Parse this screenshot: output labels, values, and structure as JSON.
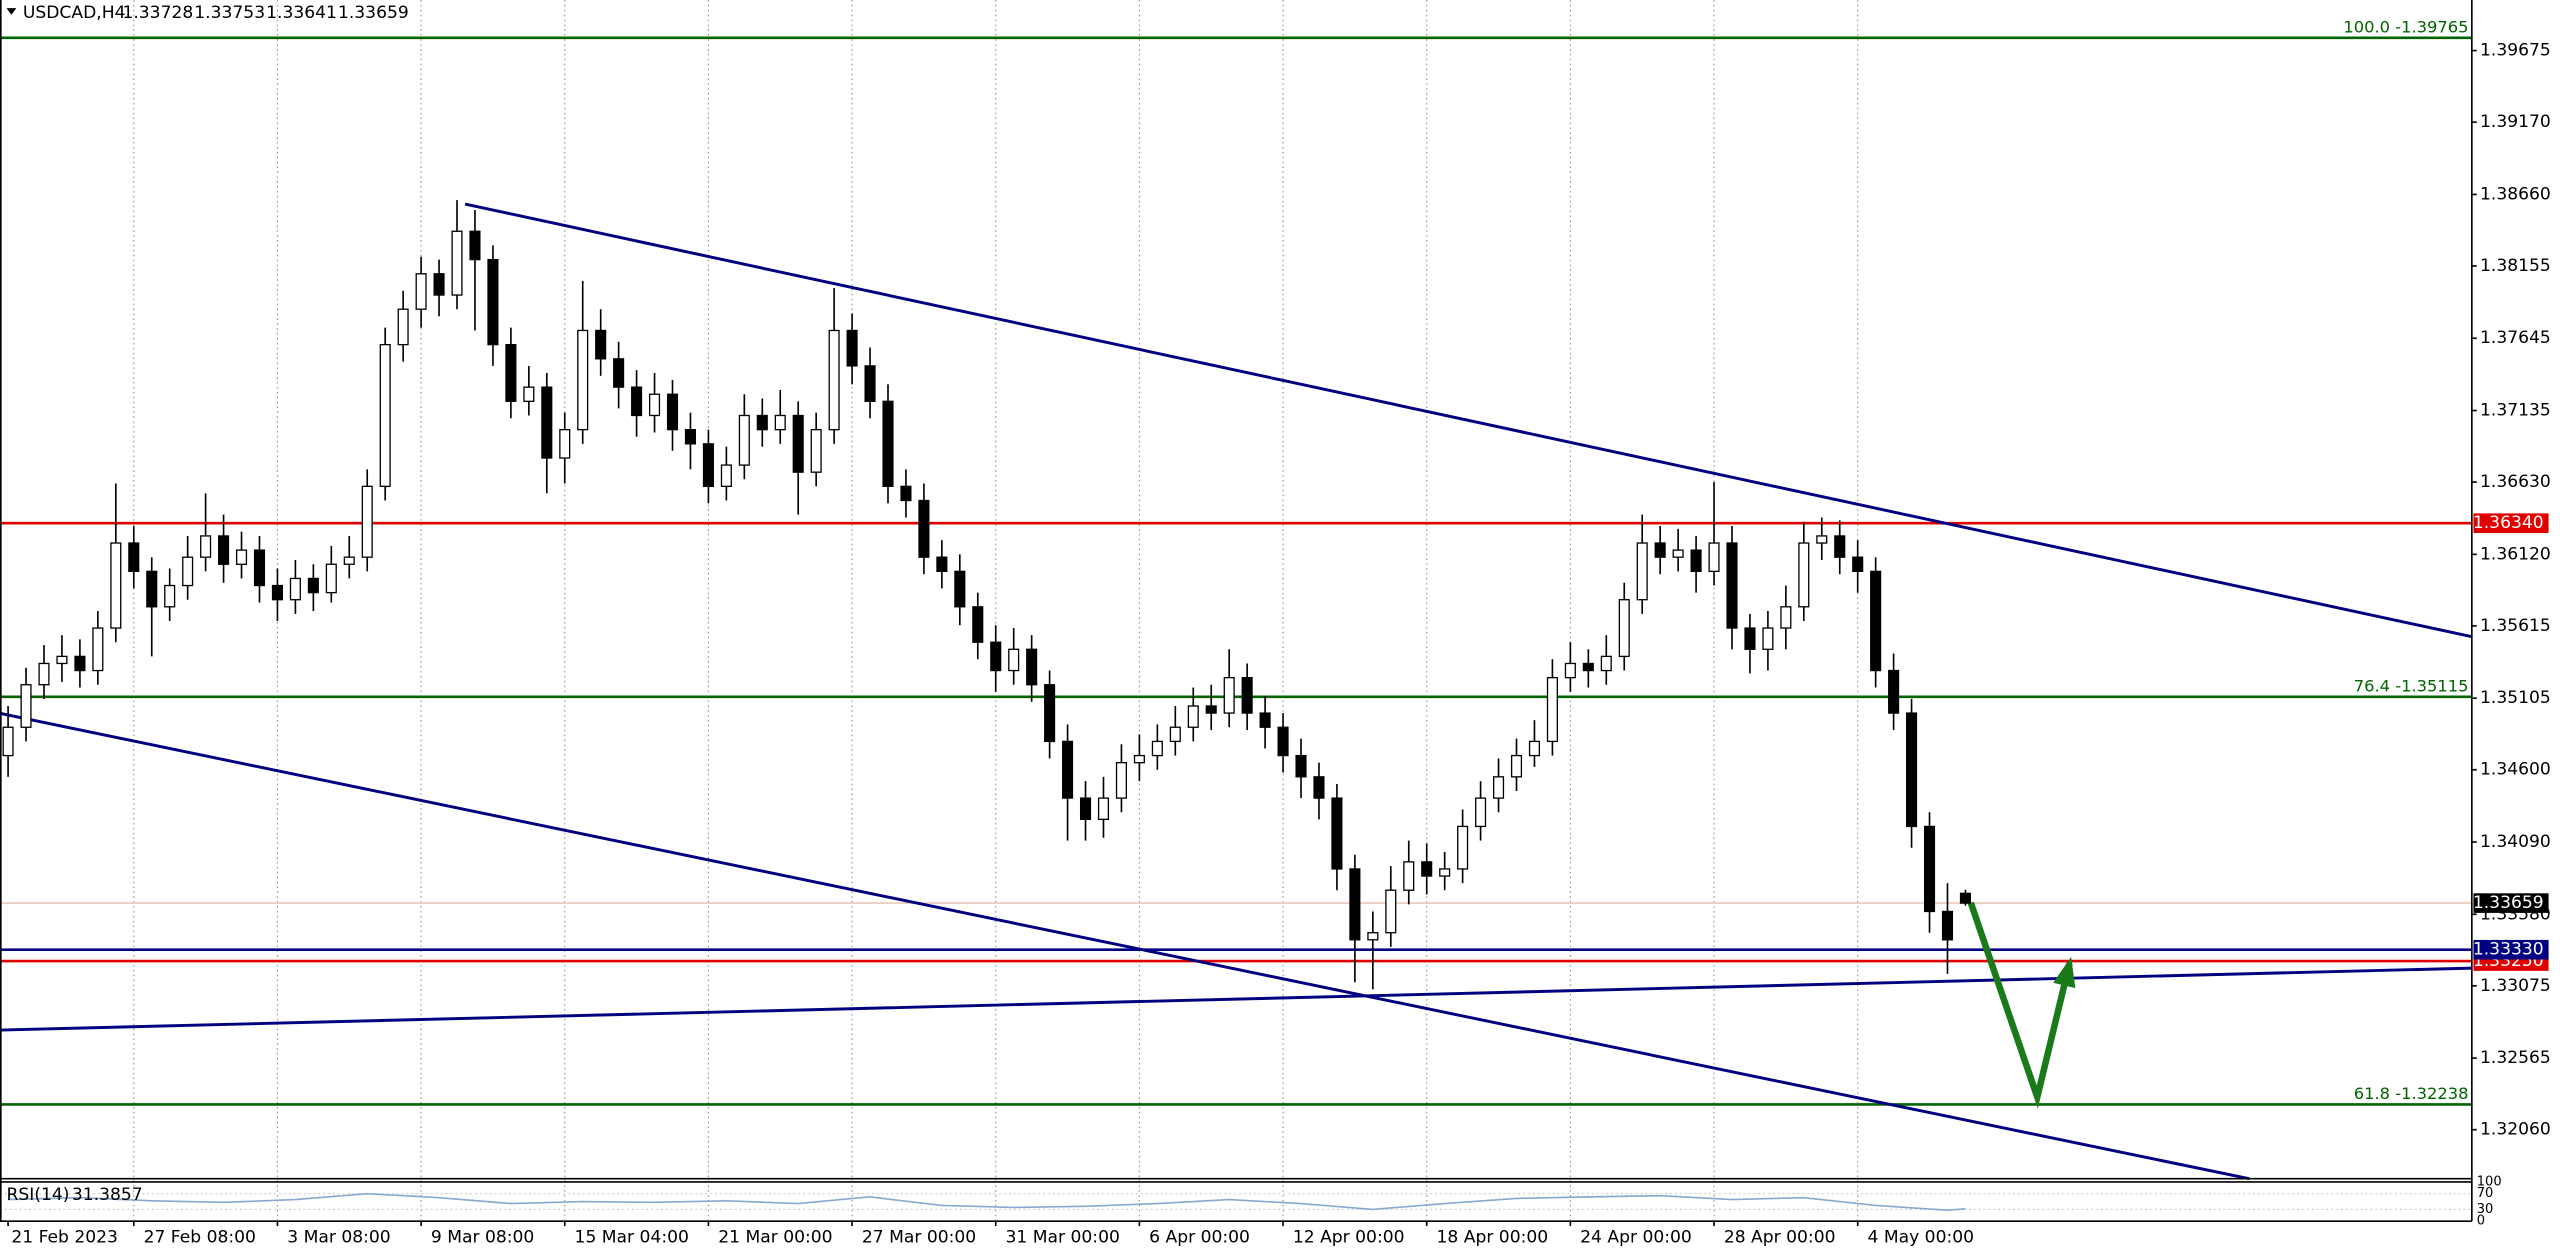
{
  "chart_data": {
    "type": "candlestick",
    "title": "USDCAD,H4",
    "open": [
      1.347,
      1.349,
      1.352,
      1.3535,
      1.354,
      1.353,
      1.356,
      1.362,
      1.36,
      1.3575,
      1.359,
      1.361,
      1.3625,
      1.3605,
      1.3615,
      1.359,
      1.358,
      1.3595,
      1.3585,
      1.3605,
      1.361,
      1.366,
      1.376,
      1.3785,
      1.381,
      1.3795,
      1.384,
      1.382,
      1.376,
      1.372,
      1.373,
      1.368,
      1.37,
      1.377,
      1.375,
      1.373,
      1.371,
      1.3725,
      1.37,
      1.369,
      1.366,
      1.3675,
      1.371,
      1.37,
      1.371,
      1.367,
      1.37,
      1.377,
      1.3745,
      1.372,
      1.366,
      1.365,
      1.361,
      1.36,
      1.3575,
      1.355,
      1.353,
      1.3545,
      1.352,
      1.348,
      1.344,
      1.3425,
      1.344,
      1.3465,
      1.347,
      1.348,
      1.349,
      1.3505,
      1.35,
      1.3525,
      1.35,
      1.349,
      1.347,
      1.3455,
      1.344,
      1.339,
      1.334,
      1.3345,
      1.3375,
      1.3395,
      1.3385,
      1.339,
      1.342,
      1.344,
      1.3455,
      1.347,
      1.348,
      1.3525,
      1.3535,
      1.353,
      1.354,
      1.358,
      1.362,
      1.361,
      1.3615,
      1.36,
      1.362,
      1.356,
      1.3545,
      1.356,
      1.3575,
      1.362,
      1.3625,
      1.361,
      1.36,
      1.353,
      1.35,
      1.342,
      1.336,
      1.33728
    ],
    "high": [
      1.3505,
      1.3532,
      1.3548,
      1.3555,
      1.3552,
      1.3572,
      1.3662,
      1.3632,
      1.361,
      1.3602,
      1.3625,
      1.3655,
      1.364,
      1.3628,
      1.3625,
      1.3602,
      1.3608,
      1.3605,
      1.3618,
      1.3625,
      1.3672,
      1.3772,
      1.3798,
      1.3822,
      1.382,
      1.3862,
      1.3855,
      1.383,
      1.3772,
      1.3745,
      1.374,
      1.3712,
      1.3805,
      1.3785,
      1.3762,
      1.3742,
      1.374,
      1.3735,
      1.3712,
      1.37,
      1.3688,
      1.3725,
      1.3722,
      1.3728,
      1.372,
      1.3712,
      1.38,
      1.3782,
      1.3758,
      1.3732,
      1.3672,
      1.3662,
      1.3622,
      1.3612,
      1.3585,
      1.3562,
      1.356,
      1.3555,
      1.353,
      1.3492,
      1.3452,
      1.3455,
      1.3478,
      1.3485,
      1.3492,
      1.3505,
      1.3518,
      1.352,
      1.3545,
      1.3535,
      1.3512,
      1.35,
      1.3482,
      1.3465,
      1.345,
      1.34,
      1.336,
      1.3392,
      1.341,
      1.3408,
      1.3402,
      1.3432,
      1.3452,
      1.3468,
      1.3482,
      1.3495,
      1.3538,
      1.355,
      1.3545,
      1.3555,
      1.3592,
      1.364,
      1.3632,
      1.363,
      1.3625,
      1.3663,
      1.3632,
      1.357,
      1.3572,
      1.359,
      1.3635,
      1.3638,
      1.3636,
      1.3622,
      1.361,
      1.3542,
      1.351,
      1.343,
      1.338,
      1.33753
    ],
    "low": [
      1.3455,
      1.348,
      1.351,
      1.3522,
      1.3518,
      1.352,
      1.355,
      1.3588,
      1.354,
      1.3565,
      1.358,
      1.36,
      1.3592,
      1.3595,
      1.3578,
      1.3565,
      1.357,
      1.3572,
      1.3578,
      1.3595,
      1.36,
      1.365,
      1.3748,
      1.3772,
      1.378,
      1.3785,
      1.377,
      1.3745,
      1.3708,
      1.371,
      1.3655,
      1.3662,
      1.369,
      1.3738,
      1.3715,
      1.3695,
      1.3698,
      1.3685,
      1.3672,
      1.3648,
      1.365,
      1.3665,
      1.3688,
      1.369,
      1.364,
      1.366,
      1.369,
      1.3732,
      1.3708,
      1.3648,
      1.3638,
      1.3598,
      1.3588,
      1.3562,
      1.3538,
      1.3515,
      1.352,
      1.3508,
      1.3468,
      1.341,
      1.341,
      1.3412,
      1.343,
      1.3452,
      1.346,
      1.347,
      1.348,
      1.3488,
      1.349,
      1.3488,
      1.3475,
      1.3458,
      1.344,
      1.3425,
      1.3375,
      1.331,
      1.3305,
      1.3335,
      1.3365,
      1.3372,
      1.3375,
      1.338,
      1.341,
      1.343,
      1.3445,
      1.3462,
      1.347,
      1.3515,
      1.3518,
      1.352,
      1.353,
      1.357,
      1.3598,
      1.36,
      1.3585,
      1.359,
      1.3545,
      1.3528,
      1.353,
      1.3545,
      1.3565,
      1.3608,
      1.3598,
      1.3585,
      1.3518,
      1.3488,
      1.3405,
      1.3345,
      1.3316,
      1.33641
    ],
    "close": [
      1.349,
      1.352,
      1.3535,
      1.354,
      1.353,
      1.356,
      1.362,
      1.36,
      1.3575,
      1.359,
      1.361,
      1.3625,
      1.3605,
      1.3615,
      1.359,
      1.358,
      1.3595,
      1.3585,
      1.3605,
      1.361,
      1.366,
      1.376,
      1.3785,
      1.381,
      1.3795,
      1.384,
      1.382,
      1.376,
      1.372,
      1.373,
      1.368,
      1.37,
      1.377,
      1.375,
      1.373,
      1.371,
      1.3725,
      1.37,
      1.369,
      1.366,
      1.3675,
      1.371,
      1.37,
      1.371,
      1.367,
      1.37,
      1.377,
      1.3745,
      1.372,
      1.366,
      1.365,
      1.361,
      1.36,
      1.3575,
      1.355,
      1.353,
      1.3545,
      1.352,
      1.348,
      1.344,
      1.3425,
      1.344,
      1.3465,
      1.347,
      1.348,
      1.349,
      1.3505,
      1.35,
      1.3525,
      1.35,
      1.349,
      1.347,
      1.3455,
      1.344,
      1.339,
      1.334,
      1.3345,
      1.3375,
      1.3395,
      1.3385,
      1.339,
      1.342,
      1.344,
      1.3455,
      1.347,
      1.348,
      1.3525,
      1.3535,
      1.353,
      1.354,
      1.358,
      1.362,
      1.361,
      1.3615,
      1.36,
      1.362,
      1.356,
      1.3545,
      1.356,
      1.3575,
      1.362,
      1.3625,
      1.361,
      1.36,
      1.353,
      1.35,
      1.342,
      1.336,
      1.334,
      1.33659
    ],
    "xlim": [
      -0.45,
      137.2
    ],
    "ylim": [
      1.31714,
      1.40032
    ],
    "yticks": [
      1.39675,
      {
        "value": 1.3917,
        "label": "1.39170"
      },
      {
        "value": 1.3866,
        "label": "1.38660"
      },
      1.38155,
      1.37645,
      1.37135,
      {
        "value": 1.3663,
        "label": "1.36630"
      },
      {
        "value": 1.3612,
        "label": "1.36120"
      },
      1.35615,
      1.35105,
      {
        "value": 1.346,
        "label": "1.34600"
      },
      {
        "value": 1.3409,
        "label": "1.34090"
      },
      {
        "value": 1.3358,
        "label": "1.33580"
      },
      1.33075,
      1.32565,
      {
        "value": 1.3206,
        "label": "1.32060"
      }
    ],
    "xticks": [
      {
        "value": 0,
        "label": "21 Feb 2023"
      },
      {
        "value": 7,
        "label": "27 Feb 08:00"
      },
      {
        "value": 15,
        "label": "3 Mar 08:00"
      },
      {
        "value": 23,
        "label": "9 Mar 08:00"
      },
      {
        "value": 31,
        "label": "15 Mar 04:00"
      },
      {
        "value": 39,
        "label": "21 Mar 00:00"
      },
      {
        "value": 47,
        "label": "27 Mar 00:00"
      },
      {
        "value": 55,
        "label": "31 Mar 00:00"
      },
      {
        "value": 63,
        "label": "6 Apr 00:00"
      },
      {
        "value": 71,
        "label": "12 Apr 00:00"
      },
      {
        "value": 79,
        "label": "18 Apr 00:00"
      },
      {
        "value": 87,
        "label": "24 Apr 00:00"
      },
      {
        "value": 95,
        "label": "28 Apr 00:00"
      },
      {
        "value": 103,
        "label": "4 May 00:00"
      }
    ],
    "grid": true,
    "bull_color": "#ffffff",
    "bear_color": "#000000",
    "fib_color": "#006400",
    "fib_levels": [
      {
        "value": 1.39765,
        "label": "100.0 -1.39765"
      },
      {
        "value": 1.35115,
        "label": "76.4 -1.35115"
      },
      {
        "value": 1.32238,
        "label": "61.8 -1.32238"
      }
    ],
    "levels": [
      {
        "value": 1.3634,
        "label": "1.36340",
        "color": "#e00000"
      },
      {
        "value": 1.3325,
        "label": "1.33250",
        "color": "#e00000"
      },
      {
        "value": 1.3333,
        "label": "1.33330",
        "color": "#000080"
      }
    ],
    "trendline_color": "#000080",
    "trendlines": [
      {
        "x": [
          25.45,
          137.2
        ],
        "y": [
          1.38592,
          1.35539
        ]
      },
      {
        "x": [
          -0.45,
          124.8
        ],
        "y": [
          1.34998,
          1.31714
        ]
      },
      {
        "x": [
          -0.45,
          137.2
        ],
        "y": [
          1.32763,
          1.332
        ]
      }
    ],
    "arrow": {
      "color": "#1a7a1a",
      "x": [
        109.3,
        113,
        114.8
      ],
      "y": [
        1.33661,
        1.3229,
        1.33235
      ]
    },
    "rsi": {
      "name": "RSI(14)",
      "color": "#87a9d0",
      "ylim": [
        0,
        100
      ],
      "yticks": [
        100,
        70,
        30,
        0
      ],
      "x": [
        0,
        4,
        8,
        12,
        16,
        20,
        24,
        28,
        32,
        36,
        40,
        44,
        48,
        52,
        56,
        60,
        64,
        68,
        72,
        76,
        80,
        84,
        88,
        92,
        96,
        100,
        104,
        108,
        109
      ],
      "values": [
        55,
        60,
        52,
        48,
        55,
        70,
        60,
        45,
        50,
        48,
        52,
        45,
        62,
        40,
        35,
        38,
        45,
        55,
        45,
        30,
        45,
        58,
        62,
        65,
        55,
        60,
        40,
        28,
        31.3857
      ]
    }
  }
}
